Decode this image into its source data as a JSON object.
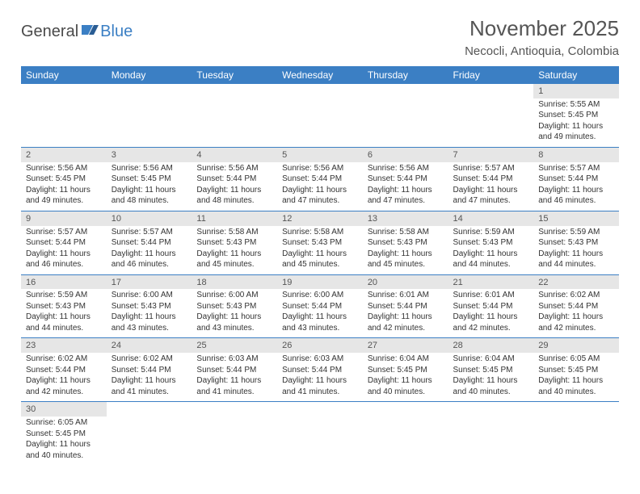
{
  "logo": {
    "text1": "General",
    "text2": "Blue"
  },
  "title": "November 2025",
  "location": "Necocli, Antioquia, Colombia",
  "colors": {
    "header_bg": "#3b7fc4",
    "header_fg": "#ffffff",
    "daynum_bg": "#e6e6e6",
    "border": "#3b7fc4",
    "text": "#333333",
    "title_text": "#555555"
  },
  "dayHeaders": [
    "Sunday",
    "Monday",
    "Tuesday",
    "Wednesday",
    "Thursday",
    "Friday",
    "Saturday"
  ],
  "weeks": [
    [
      null,
      null,
      null,
      null,
      null,
      null,
      {
        "n": "1",
        "sr": "5:55 AM",
        "ss": "5:45 PM",
        "dl": "11 hours and 49 minutes."
      }
    ],
    [
      {
        "n": "2",
        "sr": "5:56 AM",
        "ss": "5:45 PM",
        "dl": "11 hours and 49 minutes."
      },
      {
        "n": "3",
        "sr": "5:56 AM",
        "ss": "5:45 PM",
        "dl": "11 hours and 48 minutes."
      },
      {
        "n": "4",
        "sr": "5:56 AM",
        "ss": "5:44 PM",
        "dl": "11 hours and 48 minutes."
      },
      {
        "n": "5",
        "sr": "5:56 AM",
        "ss": "5:44 PM",
        "dl": "11 hours and 47 minutes."
      },
      {
        "n": "6",
        "sr": "5:56 AM",
        "ss": "5:44 PM",
        "dl": "11 hours and 47 minutes."
      },
      {
        "n": "7",
        "sr": "5:57 AM",
        "ss": "5:44 PM",
        "dl": "11 hours and 47 minutes."
      },
      {
        "n": "8",
        "sr": "5:57 AM",
        "ss": "5:44 PM",
        "dl": "11 hours and 46 minutes."
      }
    ],
    [
      {
        "n": "9",
        "sr": "5:57 AM",
        "ss": "5:44 PM",
        "dl": "11 hours and 46 minutes."
      },
      {
        "n": "10",
        "sr": "5:57 AM",
        "ss": "5:44 PM",
        "dl": "11 hours and 46 minutes."
      },
      {
        "n": "11",
        "sr": "5:58 AM",
        "ss": "5:43 PM",
        "dl": "11 hours and 45 minutes."
      },
      {
        "n": "12",
        "sr": "5:58 AM",
        "ss": "5:43 PM",
        "dl": "11 hours and 45 minutes."
      },
      {
        "n": "13",
        "sr": "5:58 AM",
        "ss": "5:43 PM",
        "dl": "11 hours and 45 minutes."
      },
      {
        "n": "14",
        "sr": "5:59 AM",
        "ss": "5:43 PM",
        "dl": "11 hours and 44 minutes."
      },
      {
        "n": "15",
        "sr": "5:59 AM",
        "ss": "5:43 PM",
        "dl": "11 hours and 44 minutes."
      }
    ],
    [
      {
        "n": "16",
        "sr": "5:59 AM",
        "ss": "5:43 PM",
        "dl": "11 hours and 44 minutes."
      },
      {
        "n": "17",
        "sr": "6:00 AM",
        "ss": "5:43 PM",
        "dl": "11 hours and 43 minutes."
      },
      {
        "n": "18",
        "sr": "6:00 AM",
        "ss": "5:43 PM",
        "dl": "11 hours and 43 minutes."
      },
      {
        "n": "19",
        "sr": "6:00 AM",
        "ss": "5:44 PM",
        "dl": "11 hours and 43 minutes."
      },
      {
        "n": "20",
        "sr": "6:01 AM",
        "ss": "5:44 PM",
        "dl": "11 hours and 42 minutes."
      },
      {
        "n": "21",
        "sr": "6:01 AM",
        "ss": "5:44 PM",
        "dl": "11 hours and 42 minutes."
      },
      {
        "n": "22",
        "sr": "6:02 AM",
        "ss": "5:44 PM",
        "dl": "11 hours and 42 minutes."
      }
    ],
    [
      {
        "n": "23",
        "sr": "6:02 AM",
        "ss": "5:44 PM",
        "dl": "11 hours and 42 minutes."
      },
      {
        "n": "24",
        "sr": "6:02 AM",
        "ss": "5:44 PM",
        "dl": "11 hours and 41 minutes."
      },
      {
        "n": "25",
        "sr": "6:03 AM",
        "ss": "5:44 PM",
        "dl": "11 hours and 41 minutes."
      },
      {
        "n": "26",
        "sr": "6:03 AM",
        "ss": "5:44 PM",
        "dl": "11 hours and 41 minutes."
      },
      {
        "n": "27",
        "sr": "6:04 AM",
        "ss": "5:45 PM",
        "dl": "11 hours and 40 minutes."
      },
      {
        "n": "28",
        "sr": "6:04 AM",
        "ss": "5:45 PM",
        "dl": "11 hours and 40 minutes."
      },
      {
        "n": "29",
        "sr": "6:05 AM",
        "ss": "5:45 PM",
        "dl": "11 hours and 40 minutes."
      }
    ],
    [
      {
        "n": "30",
        "sr": "6:05 AM",
        "ss": "5:45 PM",
        "dl": "11 hours and 40 minutes."
      },
      null,
      null,
      null,
      null,
      null,
      null
    ]
  ],
  "labels": {
    "sunrise": "Sunrise:",
    "sunset": "Sunset:",
    "daylight": "Daylight:"
  }
}
